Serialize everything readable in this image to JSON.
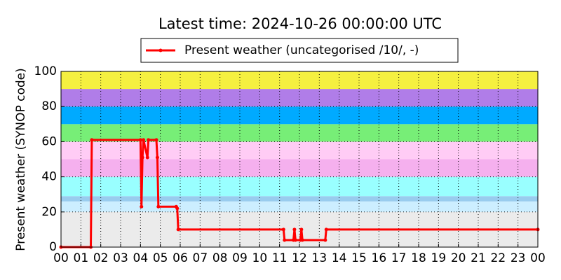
{
  "chart_data": {
    "type": "line",
    "title": "Latest time: 2024-10-26 00:00:00 UTC",
    "y_label": "Present weather (SYNOP code)",
    "bands": [
      {
        "from": 0,
        "to": 20,
        "color": "#ebebeb"
      },
      {
        "from": 20,
        "to": 26,
        "color": "#cceeff"
      },
      {
        "from": 26,
        "to": 29,
        "color": "#99ccee"
      },
      {
        "from": 29,
        "to": 40,
        "color": "#99ffff"
      },
      {
        "from": 40,
        "to": 50,
        "color": "#f5b0ee"
      },
      {
        "from": 50,
        "to": 60,
        "color": "#ffccf5"
      },
      {
        "from": 60,
        "to": 70,
        "color": "#77ee77"
      },
      {
        "from": 70,
        "to": 80,
        "color": "#00aaff"
      },
      {
        "from": 80,
        "to": 90,
        "color": "#b07de8"
      },
      {
        "from": 90,
        "to": 100,
        "color": "#f5f040"
      }
    ],
    "x": [
      0,
      1.5,
      1.55,
      4.0,
      4.05,
      4.1,
      4.15,
      4.35,
      4.4,
      4.8,
      4.85,
      4.9,
      5.8,
      5.85,
      5.9,
      11.2,
      11.25,
      11.7,
      11.75,
      11.8,
      12.05,
      12.1,
      12.15,
      13.3,
      13.35,
      24
    ],
    "series": [
      {
        "name": "Present weather (uncategorised /10/, -)",
        "color": "#ff0000",
        "values": [
          0,
          0,
          61,
          61,
          23,
          51,
          61,
          51,
          61,
          61,
          51,
          23,
          23,
          22,
          10,
          10,
          4,
          4,
          10,
          4,
          4,
          10,
          4,
          4,
          10,
          10
        ]
      }
    ],
    "xlim": [
      0,
      24
    ],
    "xticks": [
      {
        "value": 0,
        "label": "00"
      },
      {
        "value": 1,
        "label": "01"
      },
      {
        "value": 2,
        "label": "02"
      },
      {
        "value": 3,
        "label": "03"
      },
      {
        "value": 4,
        "label": "04"
      },
      {
        "value": 5,
        "label": "05"
      },
      {
        "value": 6,
        "label": "06"
      },
      {
        "value": 7,
        "label": "07"
      },
      {
        "value": 8,
        "label": "08"
      },
      {
        "value": 9,
        "label": "09"
      },
      10,
      11,
      12,
      13,
      14,
      15,
      16,
      17,
      18,
      19,
      20,
      21,
      22,
      23,
      {
        "value": 24,
        "label": "00"
      }
    ],
    "ylim": [
      0,
      100
    ],
    "yticks": [
      0,
      20,
      40,
      60,
      80,
      100
    ],
    "grid": true
  }
}
